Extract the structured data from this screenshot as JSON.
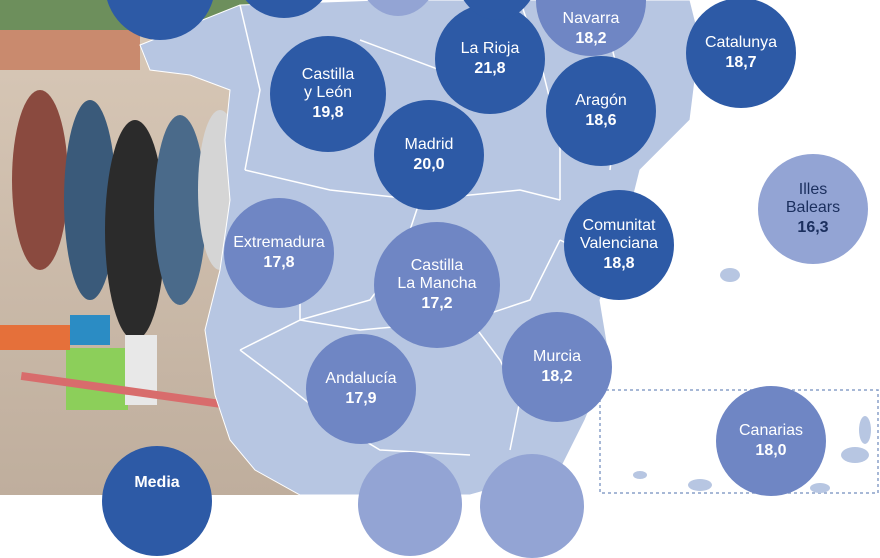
{
  "map": {
    "regions": [
      {
        "name": "Navarra",
        "value": "18,2"
      },
      {
        "name": "La Rioja",
        "value": "21,8"
      },
      {
        "name": "Catalunya",
        "value": "18,7"
      },
      {
        "name": "Castilla\ny León",
        "value": "19,8"
      },
      {
        "name": "Aragón",
        "value": "18,6"
      },
      {
        "name": "Madrid",
        "value": "20,0"
      },
      {
        "name": "Illes\nBalears",
        "value": "16,3"
      },
      {
        "name": "Extremadura",
        "value": "17,8"
      },
      {
        "name": "Comunitat\nValenciana",
        "value": "18,8"
      },
      {
        "name": "Castilla\nLa Mancha",
        "value": "17,2"
      },
      {
        "name": "Murcia",
        "value": "18,2"
      },
      {
        "name": "Andalucía",
        "value": "17,9"
      },
      {
        "name": "Canarias",
        "value": "18,0"
      },
      {
        "name": "Media",
        "value": ""
      }
    ]
  },
  "colors": {
    "ocean": "#ffffff",
    "land": "#b7c6e2",
    "bubble_dark": "#2d5aa6",
    "bubble_light": "#6f86c4",
    "bubble_pale": "#93a4d4"
  }
}
